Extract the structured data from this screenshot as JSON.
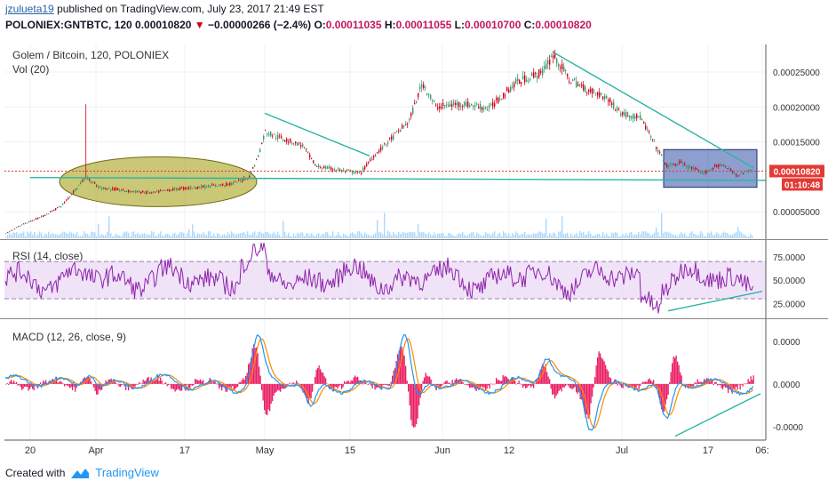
{
  "header": {
    "user": "jzulueta19",
    "published": "published on TradingView.com, July 23, 2017 21:49 EST",
    "symbol": "POLONIEX:GNTBTC, 120",
    "last_price": "0.00010820",
    "arrow": "▼",
    "change": "−0.00000266 (−2.4%)",
    "o_label": "O:",
    "o_value": "0.00011035",
    "h_label": "H:",
    "h_value": "0.00011055",
    "l_label": "L:",
    "l_value": "0.00010700",
    "c_label": "C:",
    "c_value": "0.00010820"
  },
  "footer": {
    "created_with": "Created with",
    "brand": "TradingView"
  },
  "colors": {
    "candle_up": "#3d9970",
    "candle_down": "#d0021b",
    "trendline": "#2ab5a0",
    "ellipse_fill": "#a7a11b",
    "box_fill": "#2f4fa8",
    "rsi": "#8e24aa",
    "rsi_band": "#e9d7f5",
    "macd": "#2196f3",
    "signal": "#ff8a00",
    "histogram": "#e91e63",
    "price_badge": "#e53935",
    "volume": "#90caf9"
  },
  "chart_data": [
    {
      "type": "candlestick",
      "title": "Golem / Bitcoin, 120, POLONIEX",
      "volume_label": "Vol (20)",
      "x_ticks": [
        "20",
        "Apr",
        "17",
        "May",
        "15",
        "Jun",
        "12",
        "Jul",
        "17",
        "06:"
      ],
      "y_ticks": [
        "0.00025000",
        "0.00020000",
        "0.00015000",
        "0.00005000"
      ],
      "ylim": [
        1.2e-05,
        0.000287
      ],
      "current_price": "0.00010820",
      "countdown": "01:10:48",
      "price_path": [
        [
          0,
          1.5e-05
        ],
        [
          25,
          3.2e-05
        ],
        [
          50,
          4.5e-05
        ],
        [
          70,
          6e-05
        ],
        [
          86,
          8.5e-05
        ],
        [
          96,
          0.0001
        ],
        [
          110,
          8.5e-05
        ],
        [
          140,
          8e-05
        ],
        [
          170,
          7.7e-05
        ],
        [
          200,
          8.3e-05
        ],
        [
          230,
          8.6e-05
        ],
        [
          260,
          9e-05
        ],
        [
          280,
          0.0001
        ],
        [
          290,
          0.00013
        ],
        [
          298,
          0.000165
        ],
        [
          310,
          0.000158
        ],
        [
          340,
          0.000145
        ],
        [
          355,
          0.000115
        ],
        [
          380,
          0.00011
        ],
        [
          405,
          0.000105
        ],
        [
          420,
          0.00013
        ],
        [
          440,
          0.000155
        ],
        [
          460,
          0.00018
        ],
        [
          475,
          0.000235
        ],
        [
          490,
          0.0002
        ],
        [
          520,
          0.000205
        ],
        [
          550,
          0.000198
        ],
        [
          580,
          0.000235
        ],
        [
          610,
          0.00025
        ],
        [
          622,
          0.000275
        ],
        [
          640,
          0.00024
        ],
        [
          660,
          0.000225
        ],
        [
          680,
          0.000215
        ],
        [
          700,
          0.00019
        ],
        [
          720,
          0.000185
        ],
        [
          735,
          0.00015
        ],
        [
          750,
          0.000115
        ],
        [
          765,
          0.00012
        ],
        [
          790,
          0.000105
        ],
        [
          810,
          0.000118
        ],
        [
          830,
          0.000103
        ],
        [
          845,
          0.00011
        ]
      ],
      "trendlines": [
        {
          "from": [
            34,
            9.9e-05
          ],
          "to": [
            862,
            9.5e-05
          ]
        },
        {
          "from": [
            298,
            0.000191
          ],
          "to": [
            416,
            0.00013
          ]
        },
        {
          "from": [
            622,
            0.000279
          ],
          "to": [
            848,
            0.000113
          ]
        }
      ]
    },
    {
      "type": "line",
      "title": "RSI (14, close)",
      "y_ticks": [
        "75.0000",
        "50.0000",
        "25.0000"
      ],
      "ylim": [
        10,
        92
      ],
      "band": [
        30,
        70
      ],
      "trendline": {
        "from": [
          752,
          17
        ],
        "to": [
          858,
          38
        ]
      }
    },
    {
      "type": "line",
      "title": "MACD (12, 26, close, 9)",
      "y_ticks": [
        "0.0000",
        "0.0000",
        "-0.0000"
      ],
      "ylim": [
        -5.8e-05,
        6.6e-05
      ],
      "trendline": {
        "from": [
          760,
          -5.4e-05
        ],
        "to": [
          856,
          -1e-05
        ]
      }
    }
  ]
}
